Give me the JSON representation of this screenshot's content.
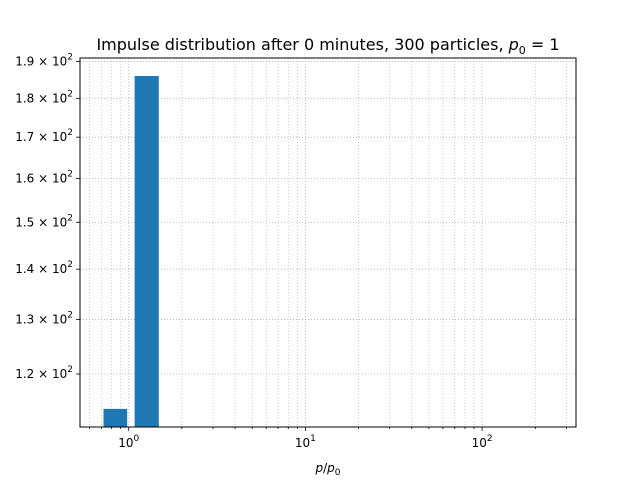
{
  "chart_data": {
    "type": "bar",
    "title": "Impulse distribution after 0 minutes, 300 particles, p₀ = 1",
    "xlabel": "p/p₀",
    "ylabel": "",
    "xscale": "log",
    "yscale": "log",
    "xlim": [
      0.53,
      340
    ],
    "ylim": [
      111,
      191
    ],
    "grid": "major and minor, dotted gray",
    "bar_color": "#1f77b4",
    "bars": [
      {
        "x_left": 0.72,
        "x_right": 0.98,
        "value": 114
      },
      {
        "x_left": 1.08,
        "x_right": 1.48,
        "value": 186
      }
    ],
    "x_major_ticks": [
      {
        "value": 1,
        "label": "10^0"
      },
      {
        "value": 10,
        "label": "10^1"
      },
      {
        "value": 100,
        "label": "10^2"
      }
    ],
    "y_ticks": [
      {
        "value": 120,
        "label": "1.2 × 10^2"
      },
      {
        "value": 130,
        "label": "1.3 × 10^2"
      },
      {
        "value": 140,
        "label": "1.4 × 10^2"
      },
      {
        "value": 150,
        "label": "1.5 × 10^2"
      },
      {
        "value": 160,
        "label": "1.6 × 10^2"
      },
      {
        "value": 170,
        "label": "1.7 × 10^2"
      },
      {
        "value": 180,
        "label": "1.8 × 10^2"
      },
      {
        "value": 190,
        "label": "1.9 × 10^2"
      }
    ]
  }
}
